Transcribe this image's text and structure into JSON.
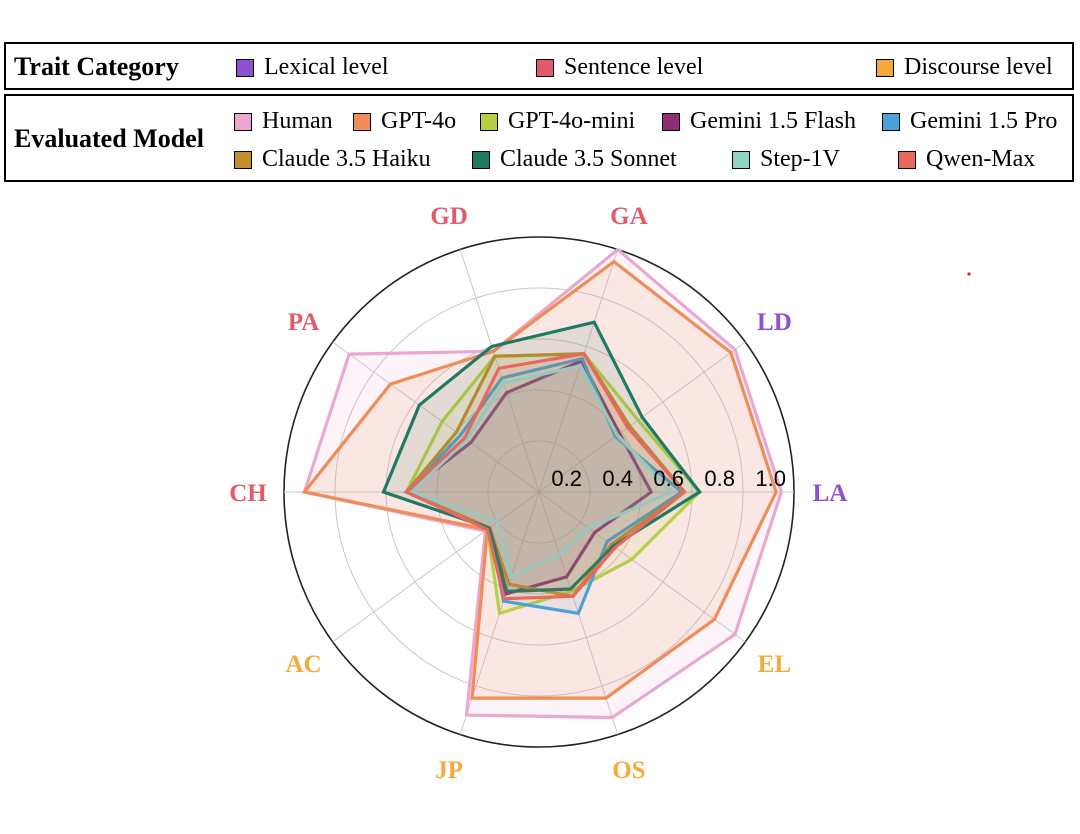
{
  "legend_trait": {
    "title": "Trait Category",
    "items": [
      {
        "label": "Lexical level",
        "color": "#8e4fd0"
      },
      {
        "label": "Sentence level",
        "color": "#e05a6a"
      },
      {
        "label": "Discourse level",
        "color": "#f5a93b"
      }
    ]
  },
  "legend_model": {
    "title": "Evaluated Model"
  },
  "chart_data": {
    "type": "radar",
    "axes": [
      {
        "label": "LA",
        "category": "Lexical level"
      },
      {
        "label": "EL",
        "category": "Discourse level"
      },
      {
        "label": "OS",
        "category": "Discourse level"
      },
      {
        "label": "JP",
        "category": "Discourse level"
      },
      {
        "label": "AC",
        "category": "Discourse level"
      },
      {
        "label": "CH",
        "category": "Sentence level"
      },
      {
        "label": "PA",
        "category": "Sentence level"
      },
      {
        "label": "GD",
        "category": "Sentence level"
      },
      {
        "label": "GA",
        "category": "Sentence level"
      },
      {
        "label": "LD",
        "category": "Lexical level"
      }
    ],
    "rlim": [
      0,
      1.0
    ],
    "rticks": [
      "0.2",
      "0.4",
      "0.6",
      "0.8",
      "1.0"
    ],
    "rtick_values": [
      0.2,
      0.4,
      0.6,
      0.8,
      1.0
    ],
    "grid": true,
    "series": [
      {
        "name": "Human",
        "color": "#eaa7d0",
        "values": [
          0.95,
          0.95,
          0.93,
          0.92,
          0.26,
          0.92,
          0.92,
          0.58,
          1.0,
          0.95
        ],
        "fill": true
      },
      {
        "name": "GPT-4o",
        "color": "#f08c56",
        "values": [
          0.93,
          0.85,
          0.85,
          0.85,
          0.25,
          0.92,
          0.72,
          0.58,
          0.95,
          0.93
        ],
        "fill": true
      },
      {
        "name": "GPT-4o-mini",
        "color": "#b6cf45",
        "values": [
          0.63,
          0.45,
          0.41,
          0.5,
          0.25,
          0.52,
          0.47,
          0.56,
          0.57,
          0.48
        ]
      },
      {
        "name": "Gemini 1.5 Flash",
        "color": "#8f2c74",
        "values": [
          0.44,
          0.27,
          0.35,
          0.42,
          0.24,
          0.52,
          0.33,
          0.41,
          0.54,
          0.39
        ]
      },
      {
        "name": "Gemini 1.5 Pro",
        "color": "#4aa3d8",
        "values": [
          0.56,
          0.33,
          0.5,
          0.45,
          0.24,
          0.52,
          0.38,
          0.47,
          0.55,
          0.37
        ]
      },
      {
        "name": "Claude 3.5 Haiku",
        "color": "#c28f2e",
        "values": [
          0.57,
          0.35,
          0.43,
          0.38,
          0.24,
          0.52,
          0.4,
          0.56,
          0.57,
          0.44
        ]
      },
      {
        "name": "Claude 3.5 Sonnet",
        "color": "#1e7a62",
        "values": [
          0.63,
          0.36,
          0.4,
          0.41,
          0.24,
          0.61,
          0.58,
          0.6,
          0.7,
          0.5
        ]
      },
      {
        "name": "Step-1V",
        "color": "#8fd3c8",
        "values": [
          0.52,
          0.24,
          0.26,
          0.35,
          0.2,
          0.5,
          0.35,
          0.45,
          0.52,
          0.38
        ]
      },
      {
        "name": "Qwen-Max",
        "color": "#e8675f",
        "values": [
          0.57,
          0.37,
          0.43,
          0.44,
          0.25,
          0.52,
          0.36,
          0.51,
          0.57,
          0.43
        ]
      }
    ]
  }
}
